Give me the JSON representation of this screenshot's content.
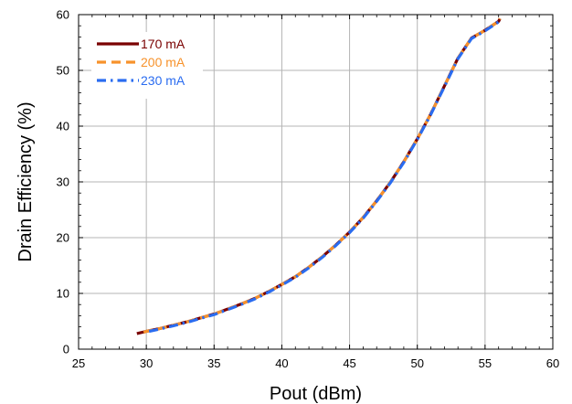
{
  "chart_data": {
    "type": "line",
    "title": "",
    "xlabel": "Pout (dBm)",
    "ylabel": "Drain Efficiency (%)",
    "xlim": [
      25,
      60
    ],
    "ylim": [
      0,
      60
    ],
    "xticks": [
      25,
      30,
      35,
      40,
      45,
      50,
      55,
      60
    ],
    "yticks": [
      0,
      10,
      20,
      30,
      40,
      50,
      60
    ],
    "grid": true,
    "legend_position": "top-left",
    "series": [
      {
        "name": "170 mA",
        "color": "#7a0000",
        "style": "solid",
        "x": [
          29.3,
          30,
          31,
          32,
          33,
          34,
          35,
          36,
          37,
          38,
          39,
          40,
          41,
          42,
          43,
          44,
          45,
          46,
          47,
          48,
          49,
          50,
          51,
          52,
          53,
          54,
          55,
          55.5,
          56,
          56.1
        ],
        "y": [
          2.8,
          3.2,
          3.7,
          4.3,
          4.9,
          5.6,
          6.3,
          7.2,
          8.1,
          9.1,
          10.3,
          11.6,
          13.0,
          14.7,
          16.6,
          18.7,
          21.0,
          23.6,
          26.6,
          29.9,
          33.6,
          37.7,
          42.2,
          47.2,
          52.2,
          55.8,
          57.2,
          58.0,
          58.8,
          59.3
        ]
      },
      {
        "name": "200 mA",
        "color": "#f7922b",
        "style": "dashed",
        "x": [
          29.8,
          30,
          31,
          32,
          33,
          34,
          35,
          36,
          37,
          38,
          39,
          40,
          41,
          42,
          43,
          44,
          45,
          46,
          47,
          48,
          49,
          50,
          51,
          52,
          53,
          54,
          55,
          55.5,
          56,
          56.1
        ],
        "y": [
          3.0,
          3.2,
          3.7,
          4.3,
          4.9,
          5.6,
          6.3,
          7.2,
          8.1,
          9.1,
          10.3,
          11.6,
          13.0,
          14.7,
          16.6,
          18.7,
          21.0,
          23.6,
          26.6,
          29.9,
          33.6,
          37.7,
          42.2,
          47.2,
          52.2,
          55.8,
          57.2,
          58.0,
          58.8,
          59.3
        ]
      },
      {
        "name": "230 mA",
        "color": "#2a6cf0",
        "style": "dash-dot",
        "x": [
          30.2,
          31,
          32,
          33,
          34,
          35,
          36,
          37,
          38,
          39,
          40,
          41,
          42,
          43,
          44,
          45,
          46,
          47,
          48,
          49,
          50,
          51,
          52,
          53,
          54,
          55,
          55.5,
          56,
          56.1
        ],
        "y": [
          3.2,
          3.6,
          4.2,
          4.8,
          5.5,
          6.2,
          7.1,
          8.0,
          9.0,
          10.2,
          11.5,
          12.9,
          14.6,
          16.5,
          18.6,
          20.9,
          23.5,
          26.5,
          29.8,
          33.5,
          37.6,
          42.1,
          47.1,
          52.1,
          55.7,
          57.1,
          57.9,
          58.7,
          59.2
        ]
      }
    ]
  }
}
